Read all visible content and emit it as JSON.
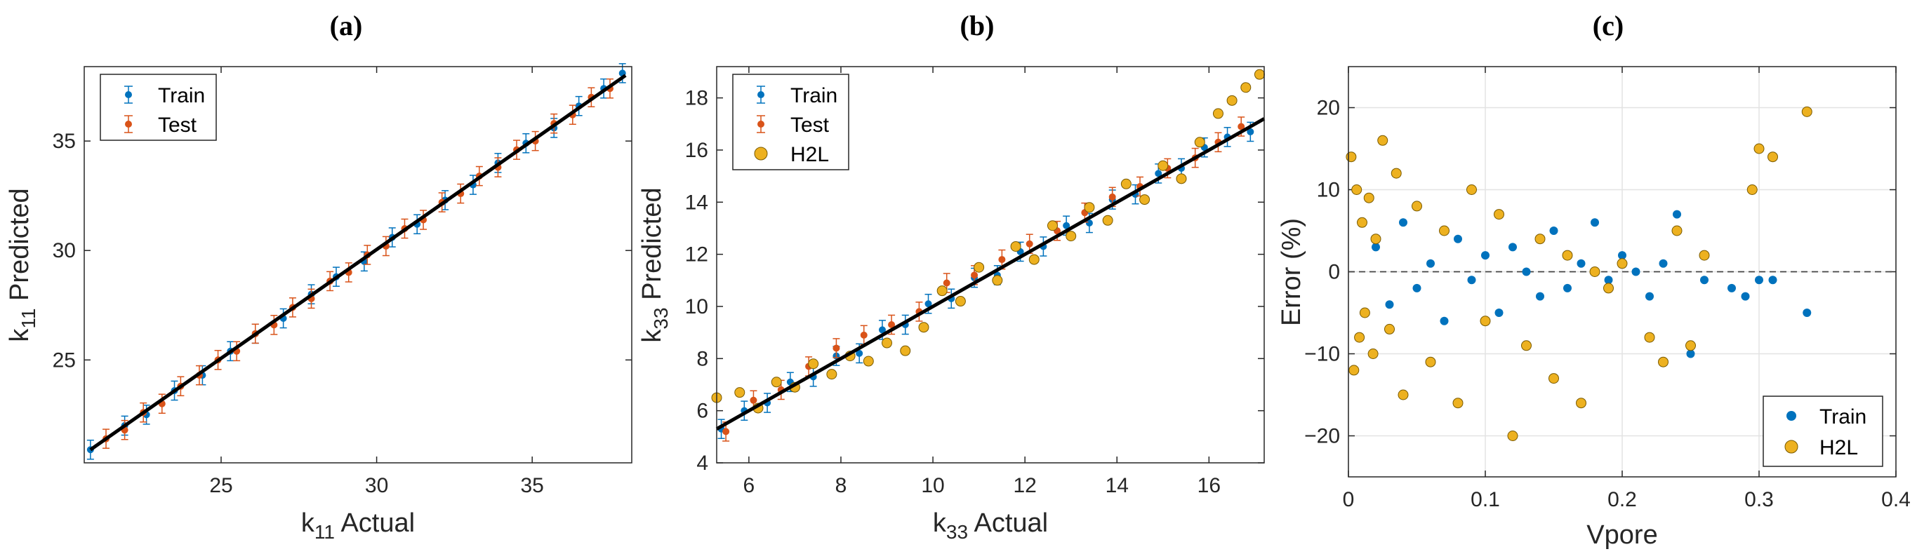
{
  "colors": {
    "train": "#0072BD",
    "test": "#D95319",
    "h2l": "#EDB120",
    "fit": "#000000"
  },
  "chart_data": [
    {
      "id": "a",
      "title": "(a)",
      "type": "scatter",
      "xlabel": {
        "main": "k",
        "sub": "11",
        "rest": " Actual"
      },
      "ylabel": {
        "main": "k",
        "sub": "11",
        "rest": " Predicted"
      },
      "xlim": [
        20.6,
        38.2
      ],
      "ylim": [
        20.3,
        38.4
      ],
      "xticks": [
        25,
        30,
        35
      ],
      "yticks": [
        25,
        30,
        35
      ],
      "grid": false,
      "legend": {
        "position": "top-left",
        "entries": [
          "Train",
          "Test"
        ]
      },
      "fit_line": [
        [
          20.8,
          20.9
        ],
        [
          38.0,
          38.0
        ]
      ],
      "series": [
        {
          "name": "Train",
          "style": "errorbar",
          "color_key": "train",
          "points": [
            [
              20.8,
              20.9
            ],
            [
              21.9,
              22.0
            ],
            [
              22.6,
              22.5
            ],
            [
              23.5,
              23.6
            ],
            [
              24.4,
              24.3
            ],
            [
              25.3,
              25.4
            ],
            [
              26.1,
              26.2
            ],
            [
              27.0,
              26.9
            ],
            [
              27.9,
              28.0
            ],
            [
              28.7,
              28.8
            ],
            [
              29.6,
              29.5
            ],
            [
              30.5,
              30.6
            ],
            [
              31.3,
              31.2
            ],
            [
              32.2,
              32.3
            ],
            [
              33.1,
              33.0
            ],
            [
              33.9,
              34.0
            ],
            [
              34.8,
              34.9
            ],
            [
              35.7,
              35.6
            ],
            [
              36.5,
              36.6
            ],
            [
              37.3,
              37.4
            ],
            [
              37.9,
              38.1
            ]
          ]
        },
        {
          "name": "Test",
          "style": "errorbar",
          "color_key": "test",
          "points": [
            [
              21.3,
              21.4
            ],
            [
              21.9,
              21.8
            ],
            [
              22.5,
              22.6
            ],
            [
              23.1,
              23.0
            ],
            [
              23.7,
              23.8
            ],
            [
              24.3,
              24.3
            ],
            [
              24.9,
              25.0
            ],
            [
              25.5,
              25.4
            ],
            [
              26.1,
              26.2
            ],
            [
              26.7,
              26.6
            ],
            [
              27.3,
              27.4
            ],
            [
              27.9,
              27.8
            ],
            [
              28.5,
              28.6
            ],
            [
              29.1,
              29.0
            ],
            [
              29.7,
              29.8
            ],
            [
              30.3,
              30.2
            ],
            [
              30.9,
              31.0
            ],
            [
              31.5,
              31.4
            ],
            [
              32.1,
              32.2
            ],
            [
              32.7,
              32.6
            ],
            [
              33.3,
              33.4
            ],
            [
              33.9,
              33.8
            ],
            [
              34.5,
              34.6
            ],
            [
              35.1,
              35.0
            ],
            [
              35.7,
              35.8
            ],
            [
              36.3,
              36.2
            ],
            [
              36.9,
              37.0
            ],
            [
              37.5,
              37.4
            ]
          ]
        }
      ]
    },
    {
      "id": "b",
      "title": "(b)",
      "type": "scatter",
      "xlabel": {
        "main": "k",
        "sub": "33",
        "rest": " Actual"
      },
      "ylabel": {
        "main": "k",
        "sub": "33",
        "rest": " Predicted"
      },
      "xlim": [
        5.3,
        17.2
      ],
      "ylim": [
        4,
        19.2
      ],
      "xticks": [
        6,
        8,
        10,
        12,
        14,
        16
      ],
      "yticks": [
        4,
        6,
        8,
        10,
        12,
        14,
        16,
        18
      ],
      "grid": false,
      "legend": {
        "position": "top-left",
        "entries": [
          "Train",
          "Test",
          "H2L"
        ]
      },
      "fit_line": [
        [
          5.3,
          5.3
        ],
        [
          17.2,
          17.2
        ]
      ],
      "series": [
        {
          "name": "Train",
          "style": "errorbar",
          "color_key": "train",
          "points": [
            [
              5.4,
              5.3
            ],
            [
              5.9,
              6.0
            ],
            [
              6.4,
              6.3
            ],
            [
              6.9,
              7.1
            ],
            [
              7.4,
              7.3
            ],
            [
              7.9,
              8.1
            ],
            [
              8.4,
              8.2
            ],
            [
              8.9,
              9.1
            ],
            [
              9.4,
              9.3
            ],
            [
              9.9,
              10.1
            ],
            [
              10.4,
              10.3
            ],
            [
              10.9,
              11.1
            ],
            [
              11.4,
              11.2
            ],
            [
              11.9,
              12.1
            ],
            [
              12.4,
              12.3
            ],
            [
              12.9,
              13.1
            ],
            [
              13.4,
              13.2
            ],
            [
              13.9,
              14.1
            ],
            [
              14.4,
              14.3
            ],
            [
              14.9,
              15.1
            ],
            [
              15.4,
              15.3
            ],
            [
              15.9,
              16.1
            ],
            [
              16.4,
              16.5
            ],
            [
              16.9,
              16.7
            ]
          ]
        },
        {
          "name": "Test",
          "style": "errorbar",
          "color_key": "test",
          "points": [
            [
              5.5,
              5.2
            ],
            [
              6.1,
              6.4
            ],
            [
              6.7,
              6.8
            ],
            [
              7.3,
              7.7
            ],
            [
              7.9,
              8.4
            ],
            [
              8.5,
              8.9
            ],
            [
              9.1,
              9.3
            ],
            [
              9.7,
              9.8
            ],
            [
              10.3,
              10.9
            ],
            [
              10.9,
              11.2
            ],
            [
              11.5,
              11.8
            ],
            [
              12.1,
              12.4
            ],
            [
              12.7,
              12.9
            ],
            [
              13.3,
              13.6
            ],
            [
              13.9,
              14.2
            ],
            [
              14.5,
              14.6
            ],
            [
              15.1,
              15.3
            ],
            [
              15.7,
              15.7
            ],
            [
              16.2,
              16.3
            ],
            [
              16.7,
              16.9
            ]
          ]
        },
        {
          "name": "H2L",
          "style": "marker",
          "color_key": "h2l",
          "points": [
            [
              5.3,
              6.5
            ],
            [
              5.8,
              6.7
            ],
            [
              6.2,
              6.1
            ],
            [
              6.6,
              7.1
            ],
            [
              7.0,
              6.9
            ],
            [
              7.4,
              7.8
            ],
            [
              7.8,
              7.4
            ],
            [
              8.2,
              8.1
            ],
            [
              8.6,
              7.9
            ],
            [
              9.0,
              8.6
            ],
            [
              9.4,
              8.3
            ],
            [
              9.8,
              9.2
            ],
            [
              10.2,
              10.6
            ],
            [
              10.6,
              10.2
            ],
            [
              11.0,
              11.5
            ],
            [
              11.4,
              11.0
            ],
            [
              11.8,
              12.3
            ],
            [
              12.2,
              11.8
            ],
            [
              12.6,
              13.1
            ],
            [
              13.0,
              12.7
            ],
            [
              13.4,
              13.8
            ],
            [
              13.8,
              13.3
            ],
            [
              14.2,
              14.7
            ],
            [
              14.6,
              14.1
            ],
            [
              15.0,
              15.4
            ],
            [
              15.4,
              14.9
            ],
            [
              15.8,
              16.3
            ],
            [
              16.2,
              17.4
            ],
            [
              16.5,
              17.9
            ],
            [
              16.8,
              18.4
            ],
            [
              17.1,
              18.9
            ]
          ]
        }
      ]
    },
    {
      "id": "c",
      "title": "(c)",
      "type": "scatter",
      "xlabel": {
        "main": "Vpore",
        "sub": "",
        "rest": ""
      },
      "ylabel": {
        "main": "Error (%)",
        "sub": "",
        "rest": ""
      },
      "xlim": [
        0,
        0.4
      ],
      "ylim": [
        -25,
        25
      ],
      "xticks": [
        0,
        0.1,
        0.2,
        0.3,
        0.4
      ],
      "yticks": [
        -20,
        -10,
        0,
        10,
        20
      ],
      "grid": true,
      "legend": {
        "position": "bottom-right",
        "entries": [
          "Train",
          "H2L"
        ]
      },
      "zero_line": 0,
      "series": [
        {
          "name": "Train",
          "style": "dot",
          "color_key": "train",
          "points": [
            [
              0.02,
              3
            ],
            [
              0.03,
              -4
            ],
            [
              0.04,
              6
            ],
            [
              0.05,
              -2
            ],
            [
              0.06,
              1
            ],
            [
              0.07,
              -6
            ],
            [
              0.08,
              4
            ],
            [
              0.09,
              -1
            ],
            [
              0.1,
              2
            ],
            [
              0.11,
              -5
            ],
            [
              0.12,
              3
            ],
            [
              0.13,
              0
            ],
            [
              0.14,
              -3
            ],
            [
              0.15,
              5
            ],
            [
              0.16,
              -2
            ],
            [
              0.17,
              1
            ],
            [
              0.18,
              6
            ],
            [
              0.19,
              -1
            ],
            [
              0.2,
              2
            ],
            [
              0.21,
              0
            ],
            [
              0.22,
              -3
            ],
            [
              0.23,
              1
            ],
            [
              0.24,
              7
            ],
            [
              0.25,
              -10
            ],
            [
              0.26,
              -1
            ],
            [
              0.28,
              -2
            ],
            [
              0.29,
              -3
            ],
            [
              0.3,
              -1
            ],
            [
              0.31,
              -1
            ],
            [
              0.335,
              -5
            ]
          ]
        },
        {
          "name": "H2L",
          "style": "marker",
          "color_key": "h2l",
          "points": [
            [
              0.002,
              14
            ],
            [
              0.004,
              -12
            ],
            [
              0.006,
              10
            ],
            [
              0.008,
              -8
            ],
            [
              0.01,
              6
            ],
            [
              0.012,
              -5
            ],
            [
              0.015,
              9
            ],
            [
              0.018,
              -10
            ],
            [
              0.02,
              4
            ],
            [
              0.025,
              16
            ],
            [
              0.03,
              -7
            ],
            [
              0.035,
              12
            ],
            [
              0.04,
              -15
            ],
            [
              0.05,
              8
            ],
            [
              0.06,
              -11
            ],
            [
              0.07,
              5
            ],
            [
              0.08,
              -16
            ],
            [
              0.09,
              10
            ],
            [
              0.1,
              -6
            ],
            [
              0.11,
              7
            ],
            [
              0.12,
              -20
            ],
            [
              0.13,
              -9
            ],
            [
              0.14,
              4
            ],
            [
              0.15,
              -13
            ],
            [
              0.16,
              2
            ],
            [
              0.17,
              -16
            ],
            [
              0.18,
              0
            ],
            [
              0.19,
              -2
            ],
            [
              0.2,
              1
            ],
            [
              0.22,
              -8
            ],
            [
              0.23,
              -11
            ],
            [
              0.24,
              5
            ],
            [
              0.25,
              -9
            ],
            [
              0.26,
              2
            ],
            [
              0.295,
              10
            ],
            [
              0.3,
              15
            ],
            [
              0.31,
              14
            ],
            [
              0.335,
              19.5
            ]
          ]
        }
      ]
    }
  ]
}
